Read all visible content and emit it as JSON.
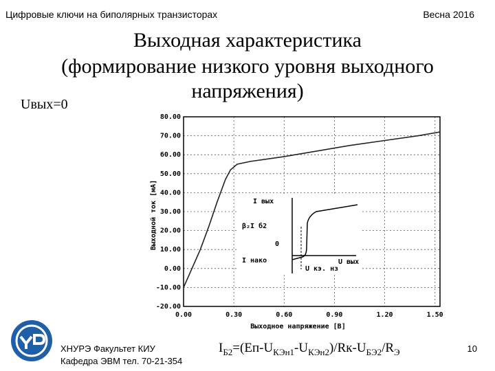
{
  "header": {
    "left": "Цифровые ключи на биполярных транзисторах",
    "right": "Весна 2016"
  },
  "title": [
    "Выходная характеристика",
    "(формирование низкого уровня выходного",
    "напряжения)"
  ],
  "condition": "Uвых=0",
  "chart_data": {
    "type": "line",
    "x_label": "Выходное напряжение [В]",
    "y_label": "Выходной ток [мА]",
    "x": [
      0,
      0.05,
      0.1,
      0.15,
      0.2,
      0.25,
      0.28,
      0.32,
      0.4,
      0.6,
      0.8,
      1.0,
      1.2,
      1.4,
      1.53
    ],
    "series": [
      {
        "color": "#222222",
        "values": [
          -10,
          0,
          10,
          22,
          35,
          47,
          52,
          55,
          56.5,
          59,
          62,
          65,
          67.5,
          70,
          72
        ]
      }
    ],
    "xlim": [
      0,
      1.53
    ],
    "ylim": [
      -20,
      80
    ],
    "xticks": [
      {
        "value": 0,
        "label": "0.00"
      },
      {
        "value": 0.3,
        "label": "0.30"
      },
      {
        "value": 0.6,
        "label": "0.60"
      },
      {
        "value": 0.9,
        "label": "0.90"
      },
      {
        "value": 1.2,
        "label": "1.20"
      },
      {
        "value": 1.5,
        "label": "1.50"
      }
    ],
    "yticks": [
      {
        "value": -20,
        "label": "-20.00"
      },
      {
        "value": -10,
        "label": "-10.00"
      },
      {
        "value": 0,
        "label": "0.00"
      },
      {
        "value": 10,
        "label": "10.00"
      },
      {
        "value": 20,
        "label": "20.00"
      },
      {
        "value": 30,
        "label": "30.00"
      },
      {
        "value": 40,
        "label": "40.00"
      },
      {
        "value": 50,
        "label": "50.00"
      },
      {
        "value": 60,
        "label": "60.00"
      },
      {
        "value": 70,
        "label": "70.00"
      },
      {
        "value": 80,
        "label": "80.00"
      }
    ],
    "grid": true
  },
  "inset": {
    "i_out": "I вых",
    "beta_ib": "β₂I б2",
    "zero": "0",
    "i_leak": "I нако",
    "u_sat": "U кэ. нз",
    "u_out": "U вых"
  },
  "footer": {
    "org": "ХНУРЭ Факультет КИУ",
    "dept": "Кафедра ЭВМ   тел. 70-21-354",
    "page": "10"
  },
  "formula": [
    "I",
    "Б2",
    "=(Еп-U",
    "КЭн1",
    "-U",
    "КЭн2",
    ")/Rк-U",
    "БЭ2",
    "/R",
    "Э"
  ]
}
